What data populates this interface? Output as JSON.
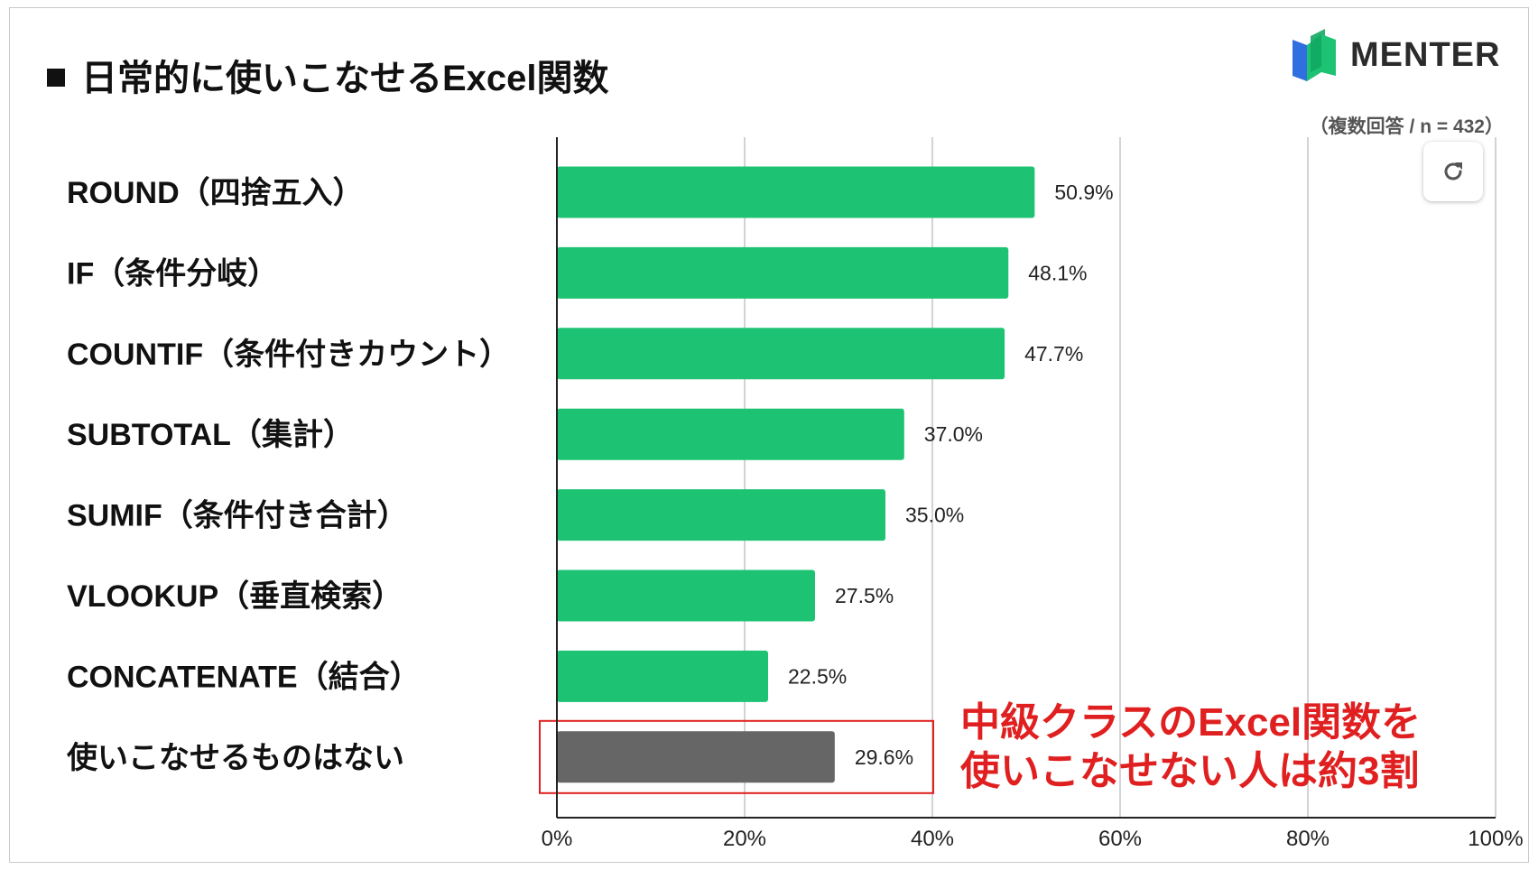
{
  "title": "日常的に使いこなせるExcel関数",
  "logo": {
    "text": "MENTER"
  },
  "note": "（複数回答 / n = 432）",
  "callout": {
    "line1": "中級クラスのExcel関数を",
    "line2": "使いこなせない人は約3割"
  },
  "colors": {
    "bar": "#1dc373",
    "highlight_bar": "#666666",
    "callout": "#e02020",
    "grid": "#d3d3d3"
  },
  "chart_data": {
    "type": "bar",
    "orientation": "horizontal",
    "categories": [
      "ROUND（四捨五入）",
      "IF（条件分岐）",
      "COUNTIF（条件付きカウント）",
      "SUBTOTAL（集計）",
      "SUMIF（条件付き合計）",
      "VLOOKUP（垂直検索）",
      "CONCATENATE（結合）",
      "使いこなせるものはない"
    ],
    "values": [
      50.9,
      48.1,
      47.7,
      37.0,
      35.0,
      27.5,
      22.5,
      29.6
    ],
    "value_labels": [
      "50.9%",
      "48.1%",
      "47.7%",
      "37.0%",
      "35.0%",
      "27.5%",
      "22.5%",
      "29.6%"
    ],
    "highlight_index": 7,
    "xlim": [
      0,
      100
    ],
    "xticks": [
      0,
      20,
      40,
      60,
      80,
      100
    ],
    "xtick_labels": [
      "0%",
      "20%",
      "40%",
      "60%",
      "80%",
      "100%"
    ],
    "grid": true,
    "legend": "none"
  }
}
